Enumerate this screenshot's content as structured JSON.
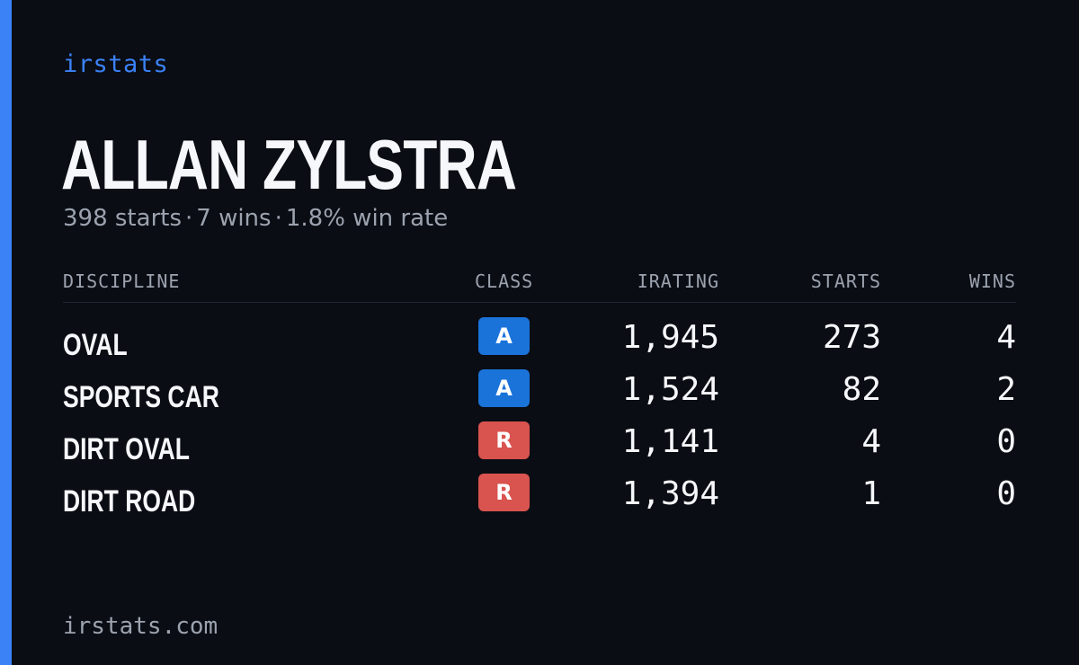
{
  "brand": "irstats",
  "driver": {
    "name": "ALLAN ZYLSTRA",
    "starts": "398 starts",
    "wins": "7 wins",
    "win_rate": "1.8% win rate",
    "separator": "·"
  },
  "table": {
    "headers": {
      "discipline": "DISCIPLINE",
      "class": "CLASS",
      "irating": "IRATING",
      "starts": "STARTS",
      "wins": "WINS"
    },
    "rows": [
      {
        "discipline": "OVAL",
        "class": "A",
        "class_color": "#1a73d9",
        "irating": "1,945",
        "starts": "273",
        "wins": "4"
      },
      {
        "discipline": "SPORTS CAR",
        "class": "A",
        "class_color": "#1a73d9",
        "irating": "1,524",
        "starts": "82",
        "wins": "2"
      },
      {
        "discipline": "DIRT OVAL",
        "class": "R",
        "class_color": "#d9534f",
        "irating": "1,141",
        "starts": "4",
        "wins": "0"
      },
      {
        "discipline": "DIRT ROAD",
        "class": "R",
        "class_color": "#d9534f",
        "irating": "1,394",
        "starts": "1",
        "wins": "0"
      }
    ]
  },
  "footer": "irstats.com",
  "colors": {
    "accent": "#3b82f6",
    "background": "#0a0d14",
    "muted": "#9ca3af"
  }
}
